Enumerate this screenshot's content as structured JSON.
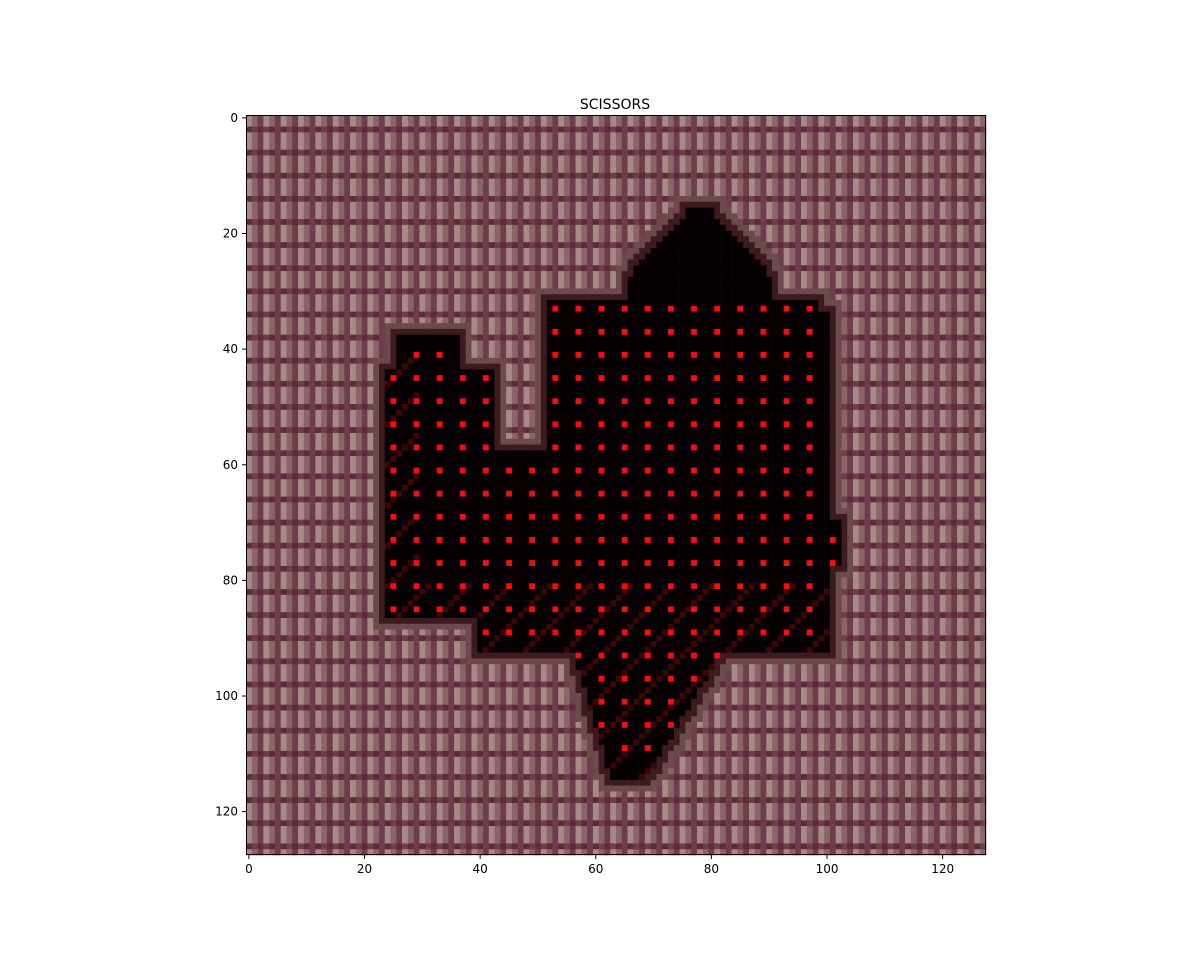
{
  "title": "SCISSORS",
  "image": {
    "pixels": 128,
    "background_colors": [
      "#8a6466",
      "#a78a86",
      "#6e3d4c",
      "#9a7a70",
      "#5c2a38",
      "#b89a95"
    ],
    "blob_color": "#060003",
    "dot_color": "#ff0a0a",
    "edge_color": "#b01010"
  },
  "axes": {
    "x_ticks": [
      "0",
      "20",
      "40",
      "60",
      "80",
      "100",
      "120"
    ],
    "y_ticks": [
      "0",
      "20",
      "40",
      "60",
      "80",
      "100",
      "120"
    ]
  }
}
